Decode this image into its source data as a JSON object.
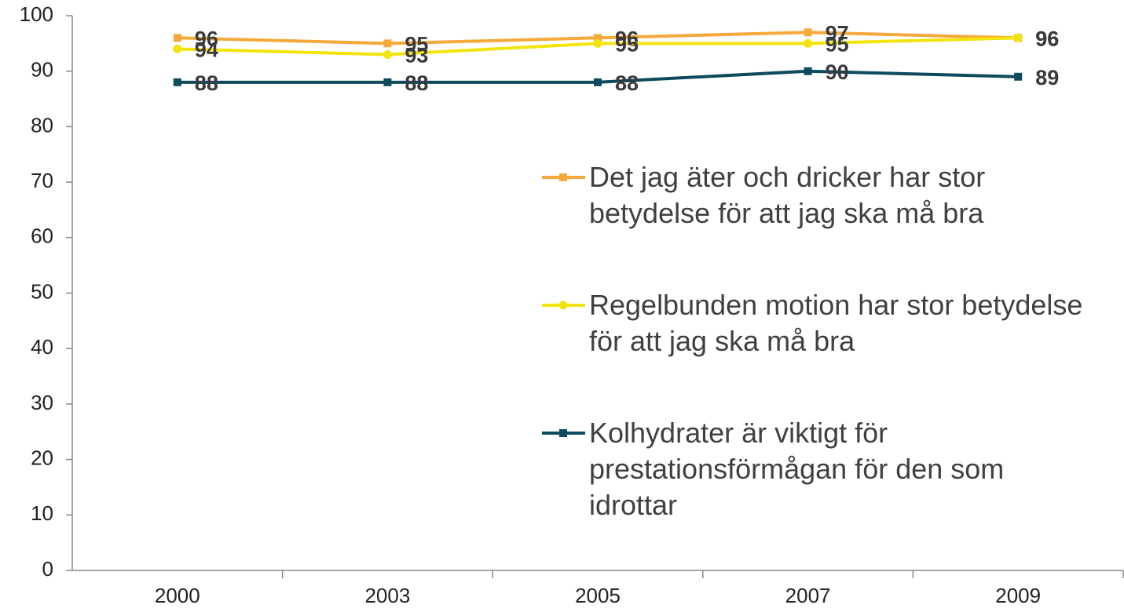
{
  "chart_data": {
    "type": "line",
    "categories": [
      "2000",
      "2003",
      "2005",
      "2007",
      "2009"
    ],
    "series": [
      {
        "name": "Det jag äter och dricker har stor betydelse för att jag ska må bra",
        "color": "#f5a93a",
        "marker": "square",
        "values": [
          96,
          95,
          96,
          97,
          96
        ]
      },
      {
        "name": "Regelbunden motion har stor betydelse för att jag ska må bra",
        "color": "#f2e40c",
        "marker": "circle",
        "values": [
          94,
          93,
          95,
          95,
          96
        ]
      },
      {
        "name": "Kolhydrater är viktigt för prestationsförmågan för den som idrottar",
        "color": "#0d4a5e",
        "marker": "square",
        "values": [
          88,
          88,
          88,
          90,
          89
        ]
      }
    ],
    "ylim": [
      0,
      100
    ],
    "yticks": [
      0,
      10,
      20,
      30,
      40,
      50,
      60,
      70,
      80,
      90,
      100
    ],
    "grid": false,
    "legend": "right"
  }
}
